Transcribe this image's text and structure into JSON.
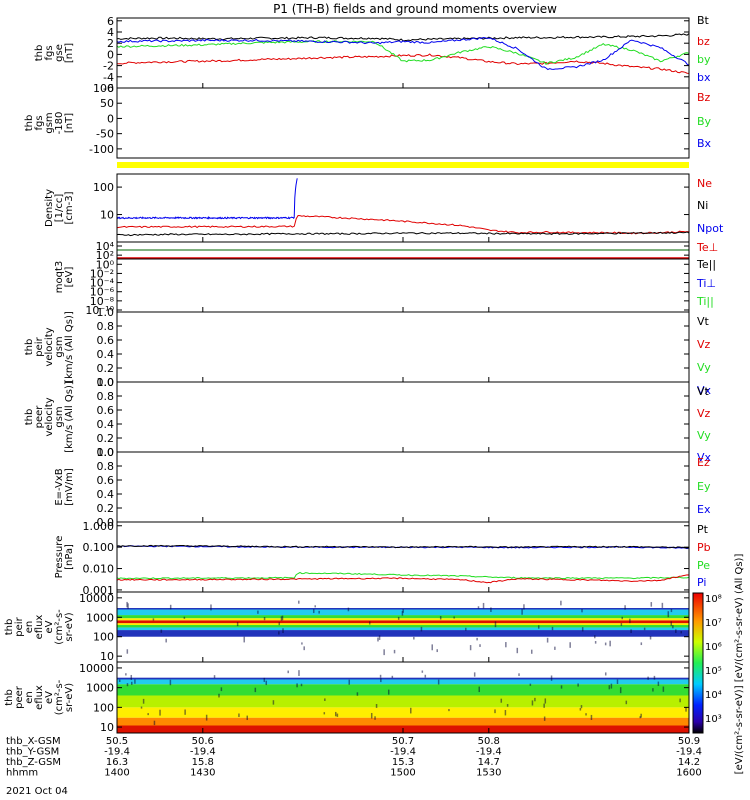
{
  "title": "P1 (TH-B) fields and ground moments overview",
  "date_label": "2021 Oct 04",
  "colors": {
    "black": "#000000",
    "red": "#e00000",
    "green": "#22dd22",
    "blue": "#0000ee",
    "yellow": "#ffff00",
    "darkgreen": "#006600"
  },
  "chart_data": [
    {
      "type": "line",
      "panel": "fgs_gse",
      "ylabel": [
        "thb",
        "fgs",
        "gse",
        "[nT]"
      ],
      "yticks": [
        "6",
        "4",
        "2",
        "0",
        "-2",
        "-4",
        "-6"
      ],
      "ylim": [
        -6,
        6.5
      ],
      "legend": [
        {
          "name": "Bt",
          "color": "#000000"
        },
        {
          "name": "bz",
          "color": "#e00000"
        },
        {
          "name": "by",
          "color": "#22dd22"
        },
        {
          "name": "bx",
          "color": "#0000ee"
        }
      ],
      "series": [
        {
          "name": "Bt",
          "x": [
            1400,
            1410,
            1420,
            1430,
            1440,
            1450,
            1460,
            1470,
            1480,
            1490,
            1500,
            1510,
            1520,
            1530,
            1540,
            1550,
            1560,
            1570,
            1580,
            1590,
            1600
          ],
          "values": [
            2.8,
            2.9,
            2.9,
            2.8,
            2.8,
            2.9,
            2.9,
            3.0,
            2.9,
            2.9,
            2.6,
            2.7,
            2.8,
            2.9,
            3.0,
            3.0,
            3.1,
            3.1,
            3.2,
            3.3,
            3.6
          ]
        },
        {
          "name": "bz",
          "x": [
            1400,
            1410,
            1420,
            1430,
            1440,
            1450,
            1460,
            1470,
            1480,
            1490,
            1500,
            1510,
            1520,
            1530,
            1540,
            1550,
            1560,
            1570,
            1580,
            1590,
            1600
          ],
          "values": [
            -1.6,
            -1.4,
            -1.3,
            -1.2,
            -1.1,
            -0.9,
            -0.8,
            -0.6,
            -0.5,
            -0.4,
            -0.2,
            -0.1,
            -0.6,
            -1.3,
            -1.7,
            -1.6,
            -1.2,
            -1.6,
            -2.2,
            -2.6,
            -3.4
          ]
        },
        {
          "name": "by",
          "x": [
            1400,
            1410,
            1420,
            1430,
            1440,
            1450,
            1460,
            1470,
            1480,
            1490,
            1500,
            1510,
            1520,
            1530,
            1540,
            1550,
            1560,
            1570,
            1580,
            1590,
            1600
          ],
          "values": [
            1.4,
            1.5,
            1.6,
            1.7,
            1.9,
            2.1,
            2.2,
            2.3,
            2.3,
            2.3,
            -1.2,
            -1.0,
            0.4,
            1.4,
            0.2,
            -1.6,
            -0.6,
            1.8,
            0.8,
            -1.2,
            0.3
          ]
        },
        {
          "name": "bx",
          "x": [
            1400,
            1410,
            1420,
            1430,
            1440,
            1450,
            1460,
            1470,
            1480,
            1490,
            1500,
            1510,
            1520,
            1530,
            1540,
            1550,
            1560,
            1570,
            1580,
            1590,
            1600
          ],
          "values": [
            2.3,
            2.4,
            2.4,
            2.5,
            2.5,
            2.5,
            2.4,
            2.3,
            2.2,
            2.0,
            2.3,
            2.1,
            2.6,
            3.0,
            1.0,
            -2.6,
            -2.3,
            -1.0,
            2.6,
            1.2,
            -1.8
          ]
        }
      ]
    },
    {
      "type": "line",
      "panel": "fgs_gsm",
      "ylabel": [
        "thb",
        "fgs",
        "gsm",
        "-180",
        "[nT]"
      ],
      "yticks": [
        "100",
        "50",
        "0",
        "-50",
        "-100"
      ],
      "ylim": [
        -130,
        100
      ],
      "legend": [
        {
          "name": "Bz",
          "color": "#e00000"
        },
        {
          "name": "By",
          "color": "#22dd22"
        },
        {
          "name": "Bx",
          "color": "#0000ee"
        }
      ],
      "series": []
    },
    {
      "type": "line",
      "panel": "moments_density",
      "ylabel": [
        "Density",
        "[1/cc]",
        "[cm-3]"
      ],
      "yticks": [
        "100",
        "10"
      ],
      "ylim": [
        1,
        300
      ],
      "log": true,
      "legend": [
        {
          "name": "Ne",
          "color": "#e00000"
        },
        {
          "name": "Ni",
          "color": "#000000"
        },
        {
          "name": "Npot",
          "color": "#0000ee"
        }
      ],
      "series": [
        {
          "name": "Npot",
          "x": [
            1400,
            1420,
            1440,
            1460,
            1462,
            1463
          ],
          "values": [
            7.5,
            7.6,
            7.5,
            7.6,
            7.8,
            200
          ]
        },
        {
          "name": "Ne",
          "x": [
            1400,
            1420,
            1440,
            1460,
            1462,
            1463,
            1470,
            1480,
            1490,
            1500,
            1510,
            1520,
            1530,
            1540,
            1550,
            1560,
            1570,
            1580,
            1590,
            1600
          ],
          "values": [
            3.5,
            3.6,
            3.6,
            3.7,
            3.7,
            9.0,
            8.4,
            7.5,
            6.6,
            5.7,
            4.8,
            4.0,
            2.7,
            2.2,
            2.3,
            2.2,
            2.2,
            2.1,
            2.2,
            2.4
          ]
        },
        {
          "name": "Ni",
          "x": [
            1400,
            1420,
            1440,
            1460,
            1480,
            1500,
            1520,
            1540,
            1560,
            1580,
            1600
          ],
          "values": [
            1.8,
            1.9,
            1.9,
            2.0,
            2.0,
            2.1,
            2.1,
            2.0,
            2.0,
            2.1,
            2.2
          ]
        }
      ]
    },
    {
      "type": "line",
      "panel": "temperature",
      "ylabel": [
        "moqt3",
        "[eV]"
      ],
      "yticks": [
        "10⁴",
        "10²",
        "10⁰",
        "10⁻²",
        "10⁻⁴",
        "10⁻⁶",
        "10⁻⁸",
        "10⁻¹⁰"
      ],
      "legend": [
        {
          "name": "Te⊥",
          "color": "#e00000"
        },
        {
          "name": "Te||",
          "color": "#000000"
        },
        {
          "name": "Ti⊥",
          "color": "#0000ee"
        },
        {
          "name": "Ti||",
          "color": "#22dd22"
        }
      ]
    },
    {
      "type": "line",
      "panel": "peir_velocity",
      "ylabel": [
        "thb",
        "peir",
        "velocity",
        "gsm",
        "[km/s (All Qs)]"
      ],
      "yticks": [
        "1.0",
        "0.8",
        "0.6",
        "0.4",
        "0.2",
        "0.0"
      ],
      "ylim": [
        0,
        1
      ],
      "legend": [
        {
          "name": "Vt",
          "color": "#000000"
        },
        {
          "name": "Vz",
          "color": "#e00000"
        },
        {
          "name": "Vy",
          "color": "#22dd22"
        },
        {
          "name": "Vx",
          "color": "#0000ee"
        }
      ],
      "series": []
    },
    {
      "type": "line",
      "panel": "peer_velocity",
      "ylabel": [
        "thb",
        "peer",
        "velocity",
        "gsm",
        "[km/s (All Qs)]"
      ],
      "yticks": [
        "1.0",
        "0.8",
        "0.6",
        "0.4",
        "0.2",
        "0.0"
      ],
      "ylim": [
        0,
        1
      ],
      "legend": [
        {
          "name": "Vt",
          "color": "#000000"
        },
        {
          "name": "Vz",
          "color": "#e00000"
        },
        {
          "name": "Vy",
          "color": "#22dd22"
        },
        {
          "name": "Vx",
          "color": "#0000ee"
        }
      ],
      "series": []
    },
    {
      "type": "line",
      "panel": "efield",
      "ylabel": [
        "E=-VxB",
        "[mV/m]"
      ],
      "yticks": [
        "1.0",
        "0.8",
        "0.6",
        "0.4",
        "0.2",
        "0.0"
      ],
      "ylim": [
        0,
        1
      ],
      "legend": [
        {
          "name": "Ez",
          "color": "#e00000"
        },
        {
          "name": "Ey",
          "color": "#22dd22"
        },
        {
          "name": "Ex",
          "color": "#0000ee"
        }
      ],
      "series": []
    },
    {
      "type": "line",
      "panel": "pressure",
      "ylabel": [
        "Pressure",
        "[nPa]"
      ],
      "yticks": [
        "1.000",
        "0.100",
        "0.010",
        "0.001"
      ],
      "ylim": [
        0.0008,
        1.5
      ],
      "log": true,
      "legend": [
        {
          "name": "Pt",
          "color": "#000000"
        },
        {
          "name": "Pb",
          "color": "#e00000"
        },
        {
          "name": "Pe",
          "color": "#22dd22"
        },
        {
          "name": "Pi",
          "color": "#0000ee"
        }
      ],
      "series": [
        {
          "name": "Pi",
          "x": [
            1400,
            1420,
            1440,
            1460,
            1480,
            1500,
            1520,
            1540,
            1560,
            1580,
            1600
          ],
          "values": [
            0.11,
            0.11,
            0.105,
            0.1,
            0.1,
            0.098,
            0.1,
            0.095,
            0.1,
            0.1,
            0.09
          ]
        },
        {
          "name": "Pt",
          "x": [
            1400,
            1420,
            1440,
            1460,
            1480,
            1500,
            1520,
            1540,
            1560,
            1580,
            1600
          ],
          "values": [
            0.115,
            0.115,
            0.11,
            0.105,
            0.105,
            0.1,
            0.105,
            0.1,
            0.105,
            0.105,
            0.095
          ]
        },
        {
          "name": "Pe",
          "x": [
            1400,
            1430,
            1462,
            1463,
            1480,
            1500,
            1520,
            1530,
            1540,
            1560,
            1580,
            1600
          ],
          "values": [
            0.0035,
            0.0036,
            0.0037,
            0.0062,
            0.0058,
            0.005,
            0.0045,
            0.004,
            0.0037,
            0.0036,
            0.0036,
            0.0038
          ]
        },
        {
          "name": "Pb",
          "x": [
            1400,
            1420,
            1440,
            1460,
            1480,
            1500,
            1520,
            1530,
            1540,
            1560,
            1580,
            1590,
            1600
          ],
          "values": [
            0.003,
            0.003,
            0.0031,
            0.0032,
            0.0034,
            0.0035,
            0.003,
            0.0022,
            0.0033,
            0.003,
            0.0026,
            0.0028,
            0.005
          ]
        }
      ]
    },
    {
      "type": "heatmap",
      "panel": "peir_spectrogram",
      "ylabel": [
        "thb",
        "peir",
        "en",
        "eflux",
        "eV",
        "(cm²-s-",
        "sr-eV)"
      ],
      "yticks": [
        "10000",
        "1000",
        "100",
        "10"
      ],
      "ylim": [
        5,
        20000
      ],
      "bands": [
        [
          100,
          220,
          "blue"
        ],
        [
          220,
          300,
          "cyan"
        ],
        [
          300,
          400,
          "green"
        ],
        [
          400,
          500,
          "yellow"
        ],
        [
          500,
          700,
          "red"
        ],
        [
          700,
          900,
          "yellow"
        ],
        [
          900,
          1300,
          "green"
        ],
        [
          1300,
          2500,
          "cyan"
        ],
        [
          2500,
          3000,
          "blue"
        ]
      ]
    },
    {
      "type": "heatmap",
      "panel": "peer_spectrogram",
      "ylabel": [
        "thb",
        "peer",
        "en",
        "eflux",
        "eV",
        "(cm²-s-",
        "sr-eV)"
      ],
      "yticks": [
        "10000",
        "1000",
        "100",
        "10"
      ],
      "ylim": [
        5,
        20000
      ],
      "bands": [
        [
          5,
          12,
          "red"
        ],
        [
          12,
          30,
          "orange"
        ],
        [
          30,
          100,
          "yellow"
        ],
        [
          100,
          400,
          "lime"
        ],
        [
          400,
          1500,
          "green"
        ],
        [
          1500,
          2600,
          "cyan"
        ],
        [
          2600,
          3200,
          "blue"
        ]
      ]
    }
  ],
  "colorbar": {
    "label": "[eV/(cm²-s-sr-eV)] [eV/(cm²-s-sr-eV) (All Qs)]",
    "ticks": [
      "10⁸",
      "10⁷",
      "10⁶",
      "10⁵",
      "10⁴",
      "10³"
    ]
  },
  "xaxis": {
    "range": [
      1400,
      1600
    ],
    "row_labels": [
      "thb_X-GSM",
      "thb_Y-GSM",
      "thb_Z-GSM",
      "hhmm"
    ],
    "ticks": [
      {
        "x": 1400,
        "values": [
          "50.5",
          "-19.4",
          "16.3",
          "1400"
        ]
      },
      {
        "x": 1430,
        "values": [
          "50.6",
          "-19.4",
          "15.8",
          "1430"
        ]
      },
      {
        "x": 1500,
        "values": [
          "50.7",
          "-19.4",
          "15.3",
          "1500"
        ]
      },
      {
        "x": 1530,
        "values": [
          "50.8",
          "-19.4",
          "14.7",
          "1530"
        ]
      },
      {
        "x": 1600,
        "values": [
          "50.9",
          "-19.4",
          "14.2",
          "1600"
        ]
      }
    ]
  }
}
